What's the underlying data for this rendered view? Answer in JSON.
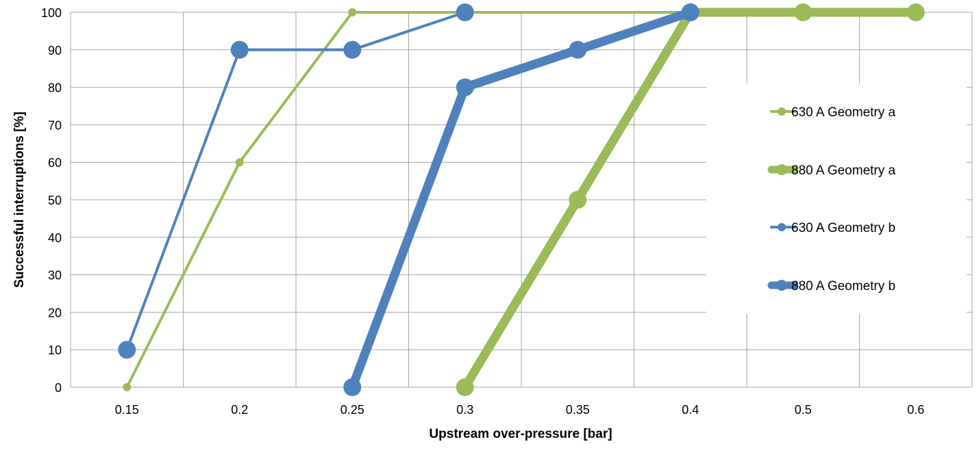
{
  "chart_data": {
    "type": "line",
    "title": "",
    "xlabel": "Upstream over-pressure [bar]",
    "ylabel": "Successful interruptions [%]",
    "categories": [
      "0.15",
      "0.2",
      "0.25",
      "0.3",
      "0.35",
      "0.4",
      "0.5",
      "0.6"
    ],
    "ylim": [
      0,
      100
    ],
    "yticks": [
      0,
      10,
      20,
      30,
      40,
      50,
      60,
      70,
      80,
      90,
      100
    ],
    "grid": true,
    "legend_position": "right",
    "series": [
      {
        "name": "630 A Geometry a",
        "color": "#9BBB59",
        "style": "thin",
        "values": [
          0,
          60,
          100,
          100,
          null,
          null,
          100,
          100
        ]
      },
      {
        "name": "880 A Geometry a",
        "color": "#9BBB59",
        "style": "thick",
        "values": [
          null,
          null,
          null,
          0,
          50,
          100,
          100,
          100
        ]
      },
      {
        "name": "630 A Geometry b",
        "color": "#4F81BD",
        "style": "thin",
        "values": [
          10,
          90,
          90,
          100,
          null,
          null,
          null,
          null
        ]
      },
      {
        "name": "880 A Geometry b",
        "color": "#4F81BD",
        "style": "thick",
        "values": [
          null,
          null,
          0,
          80,
          90,
          100,
          null,
          null
        ]
      }
    ]
  }
}
